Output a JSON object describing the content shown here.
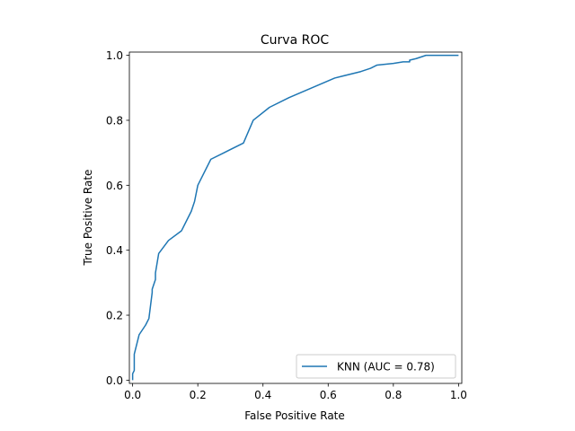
{
  "chart_data": {
    "type": "line",
    "title": "Curva ROC",
    "xlabel": "False Positive Rate",
    "ylabel": "True Positive Rate",
    "xlim": [
      -0.01,
      1.01
    ],
    "ylim": [
      -0.01,
      1.01
    ],
    "xticks": [
      0.0,
      0.2,
      0.4,
      0.6,
      0.8,
      1.0
    ],
    "xtick_labels": [
      "0.0",
      "0.2",
      "0.4",
      "0.6",
      "0.8",
      "1.0"
    ],
    "yticks": [
      0.0,
      0.2,
      0.4,
      0.6,
      0.8,
      1.0
    ],
    "ytick_labels": [
      "0.0",
      "0.2",
      "0.4",
      "0.6",
      "0.8",
      "1.0"
    ],
    "grid": false,
    "legend": "lower right",
    "series": [
      {
        "name": "KNN (AUC = 0.78)",
        "color": "#1f77b4",
        "x": [
          0.0,
          0.0,
          0.005,
          0.005,
          0.01,
          0.02,
          0.04,
          0.05,
          0.06,
          0.06,
          0.07,
          0.07,
          0.08,
          0.11,
          0.15,
          0.18,
          0.19,
          0.2,
          0.24,
          0.28,
          0.34,
          0.37,
          0.42,
          0.48,
          0.55,
          0.62,
          0.7,
          0.73,
          0.75,
          0.8,
          0.83,
          0.85,
          0.85,
          0.87,
          0.9,
          0.95,
          1.0
        ],
        "y": [
          0.0,
          0.02,
          0.03,
          0.08,
          0.1,
          0.14,
          0.17,
          0.19,
          0.27,
          0.28,
          0.31,
          0.33,
          0.39,
          0.43,
          0.46,
          0.52,
          0.55,
          0.6,
          0.68,
          0.7,
          0.73,
          0.8,
          0.84,
          0.87,
          0.9,
          0.93,
          0.95,
          0.96,
          0.97,
          0.975,
          0.98,
          0.98,
          0.985,
          0.99,
          1.0,
          1.0,
          1.0
        ]
      }
    ]
  }
}
